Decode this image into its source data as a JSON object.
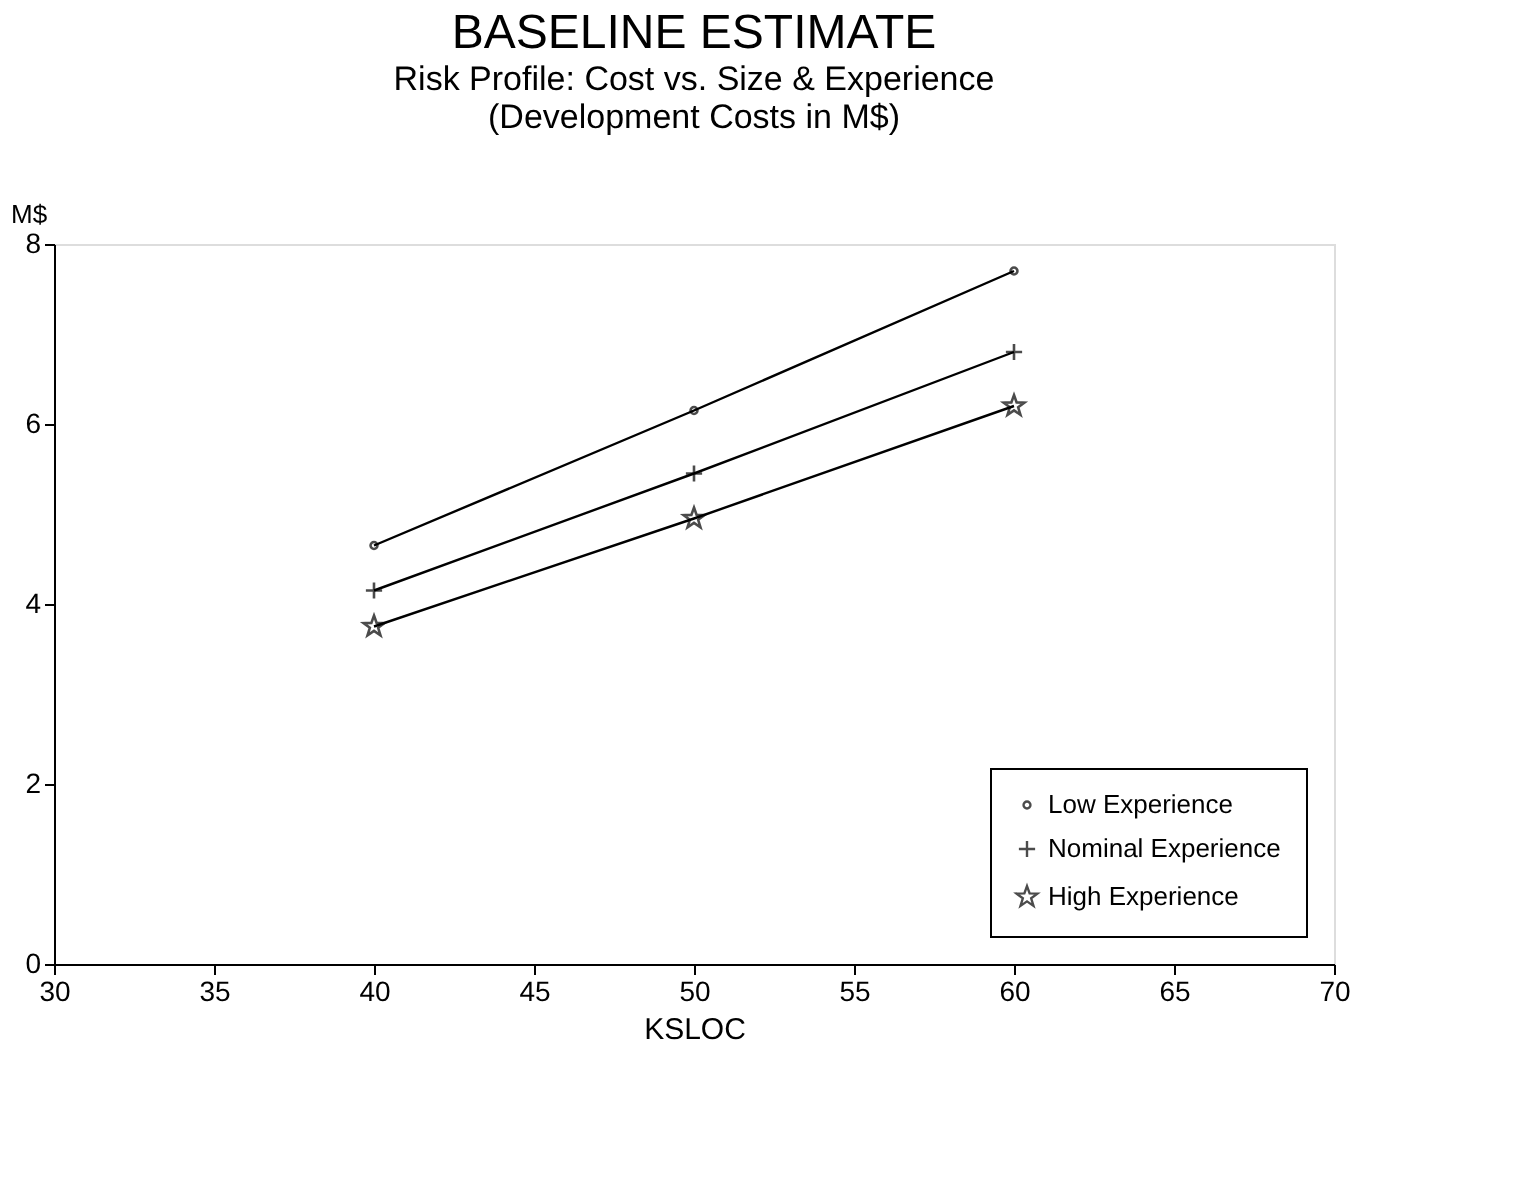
{
  "chart_data": {
    "type": "line",
    "title": "BASELINE ESTIMATE",
    "subtitle": "Risk Profile: Cost vs. Size & Experience",
    "annotations": [
      "(Development Costs in M$)"
    ],
    "xlabel": "KSLOC",
    "ylabel": "M$",
    "x": [
      40,
      50,
      60
    ],
    "series": [
      {
        "name": "Low Experience",
        "color": "#000000",
        "marker": "circle",
        "values": [
          4.65,
          6.15,
          7.7
        ]
      },
      {
        "name": "Nominal Experience",
        "color": "#000000",
        "marker": "cross",
        "values": [
          4.15,
          5.45,
          6.8
        ]
      },
      {
        "name": "High Experience",
        "color": "#000000",
        "marker": "star",
        "values": [
          3.75,
          4.95,
          6.2
        ]
      }
    ],
    "xlim": [
      30,
      70
    ],
    "xticks": [
      30,
      35,
      40,
      45,
      50,
      55,
      60,
      65,
      70
    ],
    "ylim": [
      0,
      8
    ],
    "yticks": [
      0,
      2,
      4,
      6,
      8
    ],
    "grid": false,
    "legend": "bottom right",
    "line_style": "solid"
  }
}
